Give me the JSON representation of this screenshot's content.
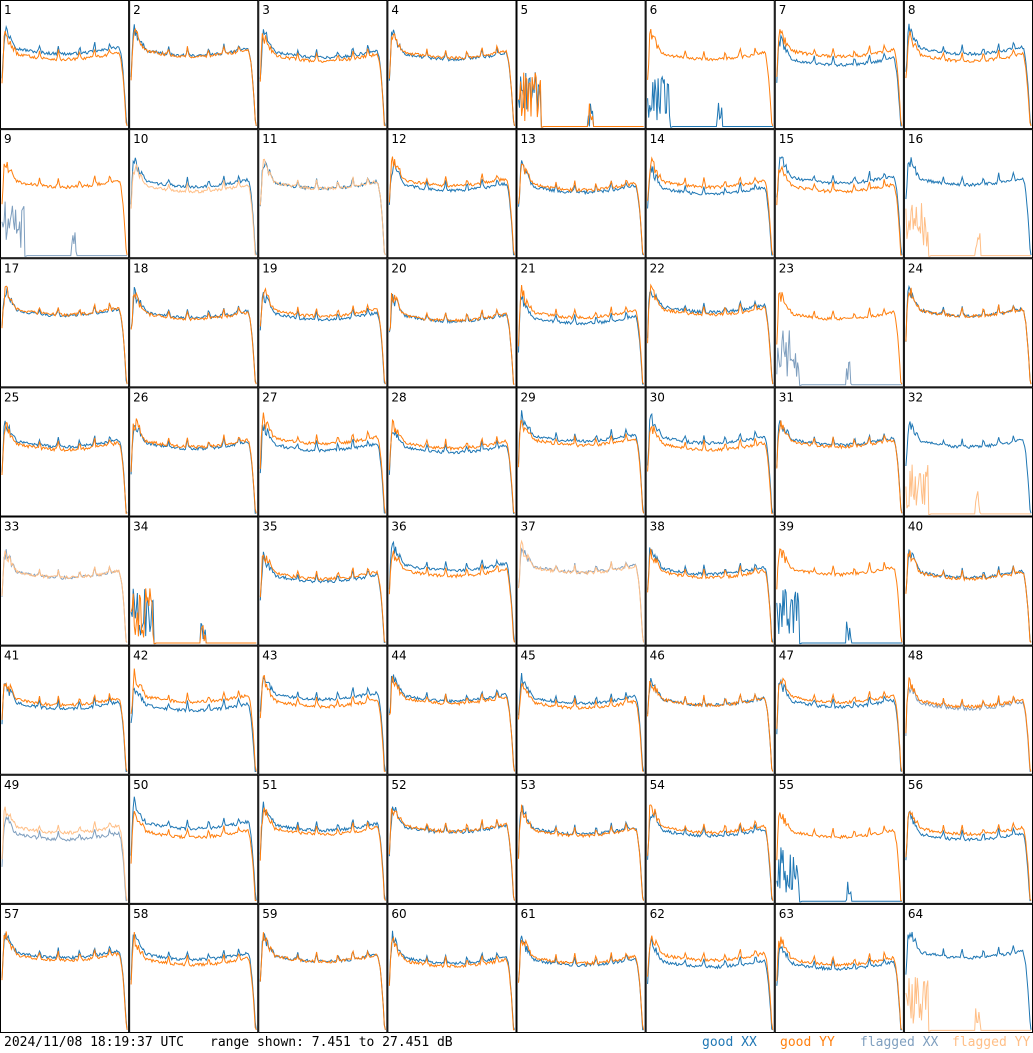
{
  "timestamp": "2024/11/08 18:19:37 UTC",
  "range_text": "range shown: 7.451 to 27.451 dB",
  "legend": [
    {
      "label": "good XX",
      "color": "#1f77b4"
    },
    {
      "label": "good YY",
      "color": "#ff7f0e"
    },
    {
      "label": "flagged XX",
      "color": "#7f9fbf"
    },
    {
      "label": "flagged YY",
      "color": "#ffbf87"
    }
  ],
  "chart_data": {
    "type": "line",
    "layout": "small-multiples 8x8",
    "ylim": [
      7.451,
      27.451
    ],
    "y_unit": "dB",
    "panel_labels": [
      "1",
      "2",
      "3",
      "4",
      "5",
      "6",
      "7",
      "8",
      "9",
      "10",
      "11",
      "12",
      "13",
      "14",
      "15",
      "16",
      "17",
      "18",
      "19",
      "20",
      "21",
      "22",
      "23",
      "24",
      "25",
      "26",
      "27",
      "28",
      "29",
      "30",
      "31",
      "32",
      "33",
      "34",
      "35",
      "36",
      "37",
      "38",
      "39",
      "40",
      "41",
      "42",
      "43",
      "44",
      "45",
      "46",
      "47",
      "48",
      "49",
      "50",
      "51",
      "52",
      "53",
      "54",
      "55",
      "56",
      "57",
      "58",
      "59",
      "60",
      "61",
      "62",
      "63",
      "64"
    ],
    "series_names": [
      "good XX",
      "good YY",
      "flagged XX",
      "flagged YY"
    ],
    "panel_status": {
      "flagged_xx": [
        "9",
        "23",
        "33",
        "37",
        "48",
        "49"
      ],
      "flagged_yy": [
        "10",
        "11",
        "16",
        "32",
        "33",
        "37",
        "49",
        "64"
      ],
      "xx_dropout": [
        "5",
        "6",
        "9",
        "23",
        "34",
        "39",
        "55"
      ],
      "yy_dropout": [
        "5",
        "16",
        "32",
        "34",
        "64"
      ]
    }
  }
}
